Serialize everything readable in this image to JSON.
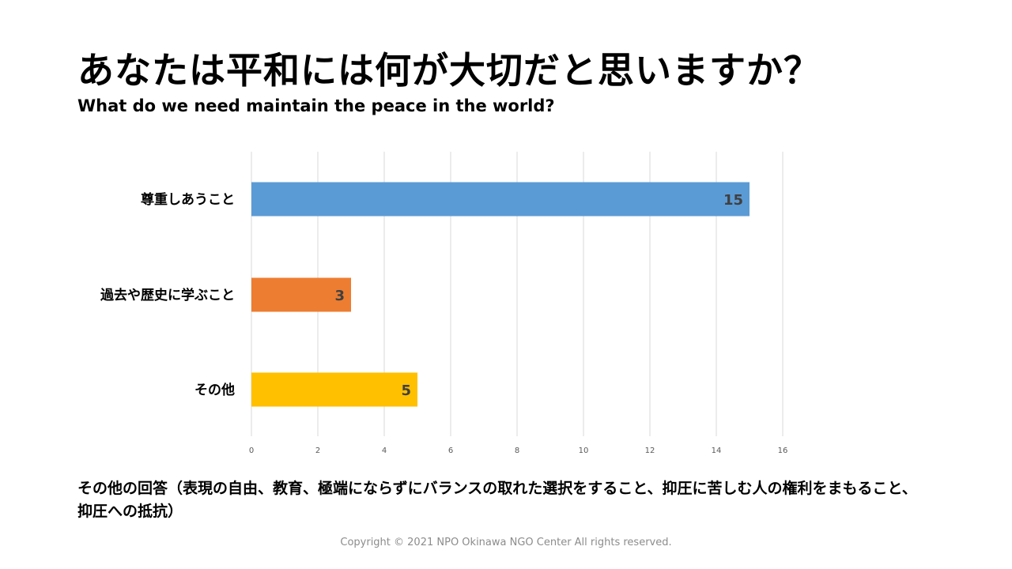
{
  "title": "あなたは平和には何が大切だと思いますか？",
  "subtitle": "What do we need maintain the peace in the world?",
  "chart_data": {
    "type": "bar",
    "orientation": "horizontal",
    "categories": [
      "尊重しあうこと",
      "過去や歴史に学ぶこと",
      "その他"
    ],
    "values": [
      15,
      3,
      5
    ],
    "bar_colors": [
      "#5b9bd5",
      "#ed7d31",
      "#ffc000"
    ],
    "xlim": [
      0,
      16
    ],
    "xticks": [
      0,
      2,
      4,
      6,
      8,
      10,
      12,
      14,
      16
    ],
    "grid": true,
    "data_labels": [
      "15",
      "3",
      "5"
    ]
  },
  "note": "その他の回答（表現の自由、教育、極端にならずにバランスの取れた選択をすること、抑圧に苦しむ人の権利をまもること、抑圧への抵抗）",
  "footer": "Copyright © 2021 NPO Okinawa NGO Center All rights reserved."
}
